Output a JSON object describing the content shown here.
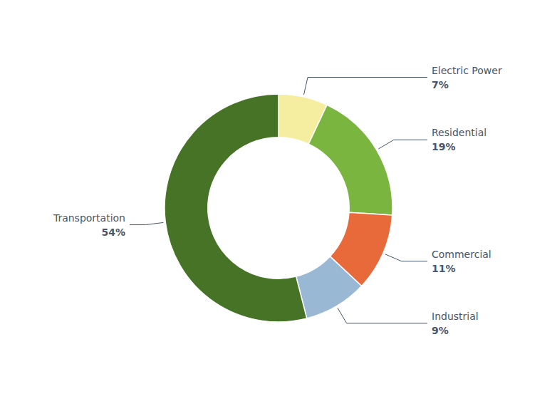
{
  "chart_data": {
    "type": "donut",
    "categories": [
      "Electric Power",
      "Residential",
      "Commercial",
      "Industrial",
      "Transportation"
    ],
    "values": [
      7,
      19,
      11,
      9,
      54
    ],
    "value_labels": [
      "7%",
      "19%",
      "11%",
      "9%",
      "54%"
    ],
    "colors": [
      "#f5eea0",
      "#7ab540",
      "#e8693a",
      "#99b8d4",
      "#467326"
    ],
    "data_labels": true
  }
}
